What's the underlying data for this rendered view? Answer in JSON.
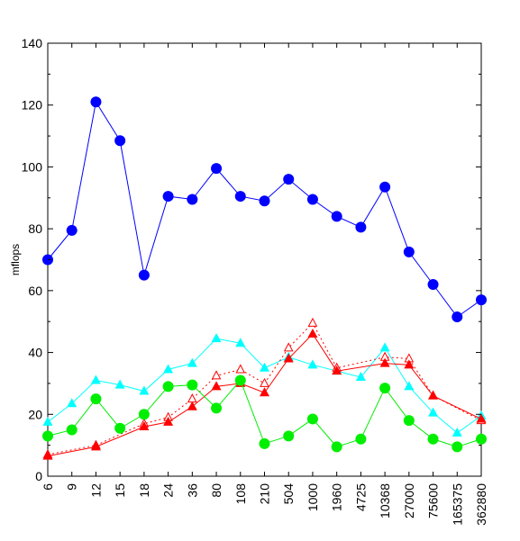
{
  "chart_data": {
    "type": "line",
    "title": "",
    "xlabel": "",
    "ylabel": "mflops",
    "ylim": [
      0,
      140
    ],
    "yticks": [
      0,
      20,
      40,
      60,
      80,
      100,
      120,
      140
    ],
    "categories": [
      "6",
      "9",
      "12",
      "15",
      "18",
      "24",
      "36",
      "80",
      "108",
      "210",
      "504",
      "1000",
      "1960",
      "4725",
      "10368",
      "27000",
      "75600",
      "165375",
      "362880"
    ],
    "grid": false,
    "series": [
      {
        "color": "#0000ff",
        "marker": "circle-filled",
        "line": "solid",
        "values": [
          70,
          79.5,
          121,
          108.5,
          65,
          90.5,
          89.5,
          99.5,
          90.5,
          89,
          96,
          89.5,
          84,
          80.5,
          93.5,
          72.5,
          62,
          51.5,
          57
        ]
      },
      {
        "color": "#00ffff",
        "marker": "triangle-filled",
        "line": "solid",
        "values": [
          17.5,
          23.5,
          31,
          29.5,
          27.5,
          34.5,
          36.5,
          44.5,
          43,
          35,
          38.5,
          36,
          34,
          32,
          41.5,
          29,
          20.5,
          14,
          19.5
        ]
      },
      {
        "color": "#ff0000",
        "marker": "triangle-open",
        "line": "dotted",
        "values": [
          7,
          null,
          10,
          null,
          17,
          19,
          25,
          32.5,
          34.5,
          30,
          41.5,
          49.5,
          35,
          null,
          38.5,
          38,
          26,
          null,
          18
        ]
      },
      {
        "color": "#ff0000",
        "marker": "triangle-filled",
        "line": "solid",
        "values": [
          6.5,
          null,
          9.5,
          null,
          16,
          17.5,
          22.5,
          29,
          30,
          27,
          38,
          46,
          34,
          null,
          36.5,
          36,
          26,
          null,
          18.5
        ]
      },
      {
        "color": "#00ee00",
        "marker": "circle-filled",
        "line": "solid",
        "values": [
          13,
          15,
          25,
          15.5,
          20,
          29,
          29.5,
          22,
          31,
          10.5,
          13,
          18.5,
          9.5,
          12,
          28.5,
          18,
          12,
          9.5,
          12
        ]
      }
    ]
  }
}
